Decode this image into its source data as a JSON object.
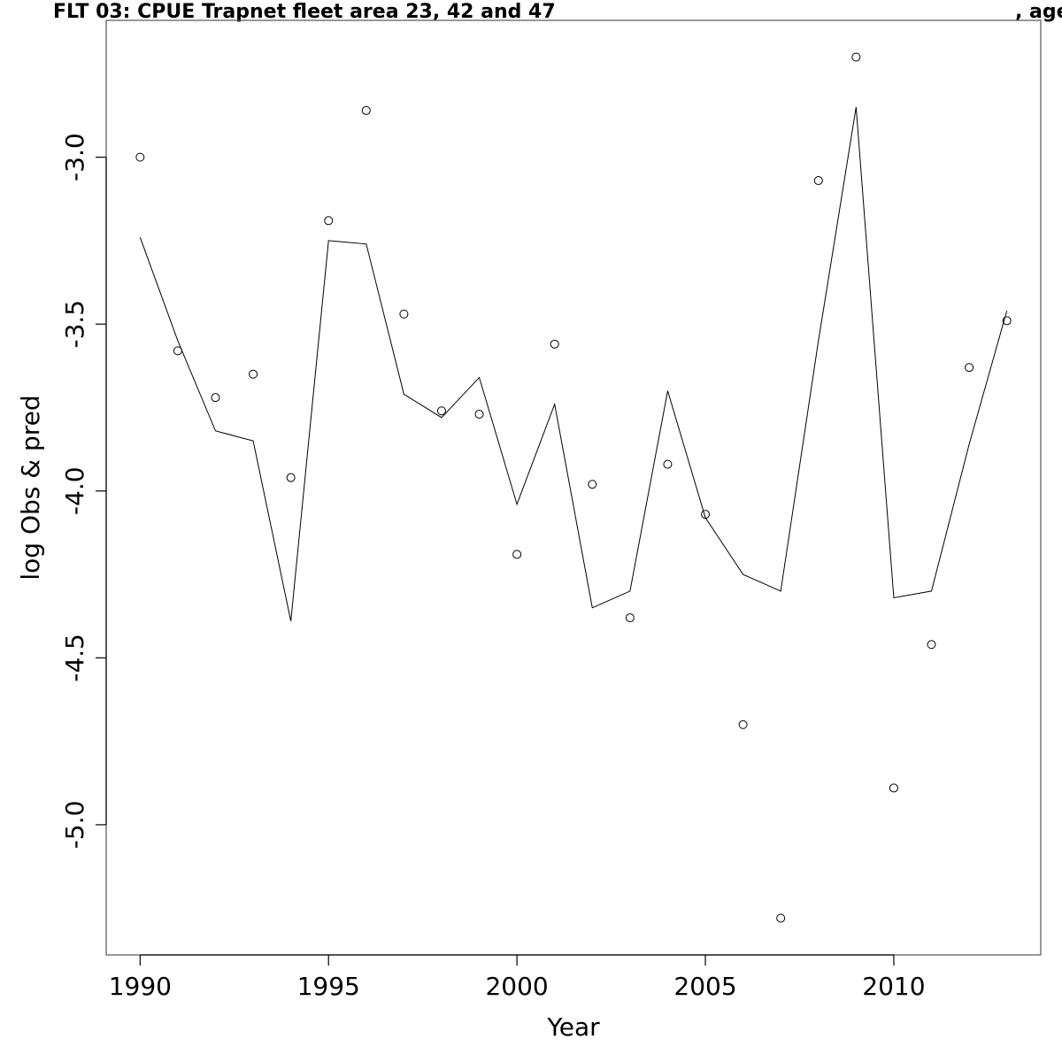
{
  "chart_data": {
    "type": "line",
    "title": "FLT 03: CPUE Trapnet fleet area 23, 42 and 47",
    "title_right": ", age",
    "xlabel": "Year",
    "ylabel": "log Obs & pred",
    "xlim": [
      1989.1,
      2013.9
    ],
    "ylim": [
      -5.39,
      -2.59
    ],
    "x_ticks": [
      1990,
      1995,
      2000,
      2005,
      2010
    ],
    "x_tick_labels": [
      "1990",
      "1995",
      "2000",
      "2005",
      "2010"
    ],
    "y_ticks": [
      -3.0,
      -3.5,
      -4.0,
      -4.5,
      -5.0
    ],
    "y_tick_labels": [
      "-3.0",
      "-3.5",
      "-4.0",
      "-4.5",
      "-5.0"
    ],
    "grid": false,
    "legend": "none",
    "x": [
      1990,
      1991,
      1992,
      1993,
      1994,
      1995,
      1996,
      1997,
      1998,
      1999,
      2000,
      2001,
      2002,
      2003,
      2004,
      2005,
      2006,
      2007,
      2008,
      2009,
      2010,
      2011,
      2012,
      2013
    ],
    "series": [
      {
        "role": "observed",
        "marker": "open-circle",
        "values": [
          -3.0,
          -3.58,
          -3.72,
          -3.65,
          -3.96,
          -3.19,
          -2.86,
          -3.47,
          -3.76,
          -3.77,
          -4.19,
          -3.56,
          -3.98,
          -4.38,
          -3.92,
          -4.07,
          -4.7,
          -5.28,
          -3.07,
          -2.7,
          -4.89,
          -4.46,
          -3.63,
          -3.49
        ]
      },
      {
        "role": "predicted",
        "marker": "line",
        "values": [
          -3.24,
          -3.55,
          -3.82,
          -3.85,
          -4.39,
          -3.25,
          -3.26,
          -3.71,
          -3.78,
          -3.66,
          -4.04,
          -3.74,
          -4.35,
          -4.3,
          -3.7,
          -4.08,
          -4.25,
          -4.3,
          -3.55,
          -2.85,
          -4.32,
          -4.3,
          -3.86,
          -3.46
        ]
      }
    ]
  }
}
